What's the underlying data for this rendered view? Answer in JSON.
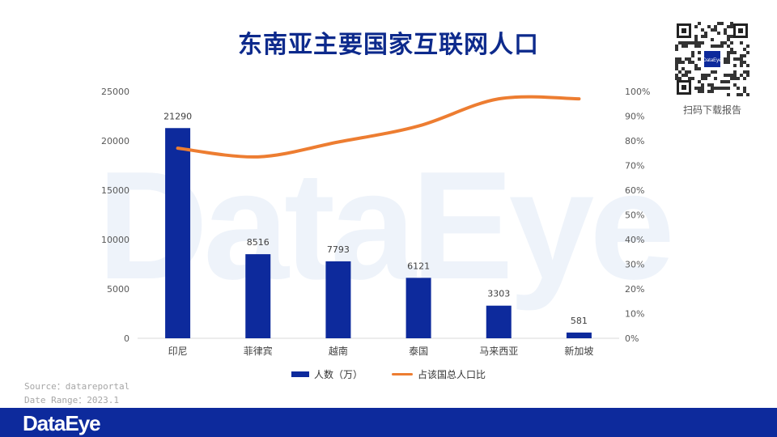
{
  "watermark": "DataEye",
  "title": "东南亚主要国家互联网人口",
  "qr_caption": "扫码下载报告",
  "qr_logo_text": "DataEye",
  "source_line1": "Source：datareportal",
  "source_line2": "Date Range：2023.1",
  "footer_logo": "DataEye",
  "colors": {
    "bar": "#0d2a9c",
    "line": "#ed7d31",
    "title": "#0d2a8c",
    "footer": "#0d2a9c"
  },
  "chart_data": {
    "type": "bar",
    "title": "东南亚主要国家互联网人口",
    "categories": [
      "印尼",
      "菲律宾",
      "越南",
      "泰国",
      "马来西亚",
      "新加坡"
    ],
    "series": [
      {
        "name": "人数（万）",
        "type": "bar",
        "axis": "left",
        "values": [
          21290,
          8516,
          7793,
          6121,
          3303,
          581
        ]
      },
      {
        "name": "占该国总人口比",
        "type": "line",
        "axis": "right",
        "values": [
          77,
          73.5,
          79.5,
          86,
          97,
          97
        ]
      }
    ],
    "ylim_left": [
      0,
      25000
    ],
    "yticks_left": [
      "0",
      "5000",
      "10000",
      "15000",
      "20000",
      "25000"
    ],
    "ylim_right": [
      0,
      100
    ],
    "yticks_right": [
      "0%",
      "10%",
      "20%",
      "30%",
      "40%",
      "50%",
      "60%",
      "70%",
      "80%",
      "90%",
      "100%"
    ],
    "legend": "bottom",
    "grid": false
  }
}
